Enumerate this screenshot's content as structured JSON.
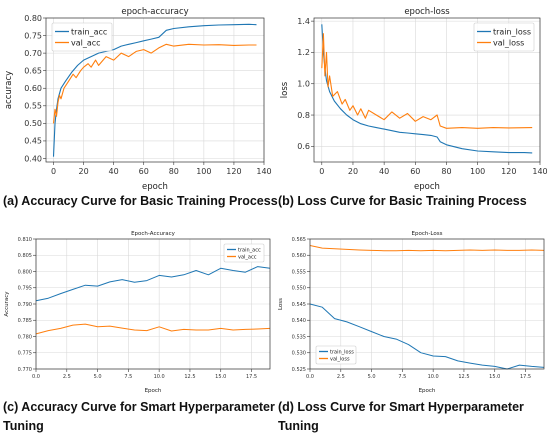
{
  "colors": {
    "train": "#1f77b4",
    "val": "#ff7f0e"
  },
  "captions": {
    "a": "(a) Accuracy Curve for Basic Training Process",
    "b": "(b) Loss Curve for Basic Training Process",
    "c_line1": "(c) Accuracy Curve for Smart Hyperparameter",
    "c_line2": "Tuning",
    "d_line1": "(d) Loss Curve for Smart Hyperparameter",
    "d_line2": "Tuning"
  },
  "chart_data": [
    {
      "id": "a",
      "type": "line",
      "title": "epoch-accuracy",
      "xlabel": "epoch",
      "ylabel": "accuracy",
      "xlim": [
        -5,
        140
      ],
      "ylim": [
        0.39,
        0.8
      ],
      "xticks": [
        0,
        20,
        40,
        60,
        80,
        100,
        120,
        140
      ],
      "xtick_labels": [
        "0",
        "20",
        "40",
        "60",
        "80",
        "100",
        "120",
        "140"
      ],
      "yticks": [
        0.4,
        0.45,
        0.5,
        0.55,
        0.6,
        0.65,
        0.7,
        0.75,
        0.8
      ],
      "ytick_labels": [
        "0.40",
        "0.45",
        "0.50",
        "0.55",
        "0.60",
        "0.65",
        "0.70",
        "0.75",
        "0.80"
      ],
      "grid": true,
      "legend": "top-left",
      "series": [
        {
          "name": "train_acc",
          "color": "#1f77b4",
          "x": [
            0,
            1,
            2,
            3,
            5,
            8,
            12,
            16,
            20,
            25,
            30,
            35,
            40,
            45,
            50,
            55,
            60,
            65,
            70,
            75,
            80,
            90,
            100,
            110,
            120,
            130,
            135
          ],
          "y": [
            0.405,
            0.5,
            0.54,
            0.57,
            0.6,
            0.62,
            0.645,
            0.665,
            0.68,
            0.69,
            0.7,
            0.705,
            0.71,
            0.72,
            0.725,
            0.73,
            0.735,
            0.74,
            0.745,
            0.765,
            0.77,
            0.775,
            0.778,
            0.78,
            0.781,
            0.782,
            0.781
          ]
        },
        {
          "name": "val_acc",
          "color": "#ff7f0e",
          "x": [
            0,
            1,
            2,
            3,
            4,
            5,
            7,
            10,
            13,
            15,
            18,
            20,
            23,
            25,
            28,
            30,
            35,
            40,
            45,
            50,
            55,
            60,
            65,
            70,
            75,
            80,
            90,
            100,
            110,
            120,
            130,
            135
          ],
          "y": [
            0.5,
            0.54,
            0.52,
            0.56,
            0.58,
            0.57,
            0.6,
            0.62,
            0.64,
            0.63,
            0.65,
            0.66,
            0.67,
            0.66,
            0.68,
            0.665,
            0.69,
            0.68,
            0.7,
            0.69,
            0.705,
            0.71,
            0.7,
            0.715,
            0.725,
            0.72,
            0.725,
            0.723,
            0.724,
            0.722,
            0.723,
            0.723
          ]
        }
      ]
    },
    {
      "id": "b",
      "type": "line",
      "title": "epoch-loss",
      "xlabel": "epoch",
      "ylabel": "loss",
      "xlim": [
        -5,
        140
      ],
      "ylim": [
        0.5,
        1.42
      ],
      "xticks": [
        0,
        20,
        40,
        60,
        80,
        100,
        120,
        140
      ],
      "xtick_labels": [
        "0",
        "20",
        "40",
        "60",
        "80",
        "100",
        "120",
        "140"
      ],
      "yticks": [
        0.6,
        0.8,
        1.0,
        1.2,
        1.4
      ],
      "ytick_labels": [
        "0.6",
        "0.8",
        "1.0",
        "1.2",
        "1.4"
      ],
      "grid": true,
      "legend": "top-right",
      "series": [
        {
          "name": "train_loss",
          "color": "#1f77b4",
          "x": [
            0,
            1,
            2,
            3,
            5,
            8,
            12,
            16,
            20,
            25,
            30,
            35,
            40,
            45,
            50,
            55,
            60,
            65,
            70,
            74,
            76,
            80,
            90,
            100,
            110,
            120,
            130,
            135
          ],
          "y": [
            1.38,
            1.2,
            1.1,
            1.02,
            0.95,
            0.89,
            0.84,
            0.8,
            0.77,
            0.745,
            0.73,
            0.72,
            0.71,
            0.7,
            0.69,
            0.685,
            0.68,
            0.675,
            0.67,
            0.66,
            0.63,
            0.61,
            0.585,
            0.57,
            0.565,
            0.56,
            0.56,
            0.558
          ]
        },
        {
          "name": "val_loss",
          "color": "#ff7f0e",
          "x": [
            0,
            1,
            2,
            3,
            4,
            5,
            7,
            10,
            13,
            15,
            18,
            20,
            23,
            25,
            28,
            30,
            35,
            40,
            45,
            50,
            55,
            60,
            65,
            70,
            74,
            76,
            80,
            90,
            100,
            110,
            120,
            130,
            135
          ],
          "y": [
            1.1,
            1.32,
            1.05,
            1.2,
            0.98,
            1.05,
            0.92,
            0.95,
            0.87,
            0.9,
            0.83,
            0.86,
            0.8,
            0.84,
            0.78,
            0.83,
            0.8,
            0.77,
            0.82,
            0.78,
            0.81,
            0.76,
            0.79,
            0.77,
            0.8,
            0.73,
            0.715,
            0.72,
            0.715,
            0.72,
            0.718,
            0.719,
            0.72
          ]
        }
      ]
    },
    {
      "id": "c",
      "type": "line",
      "title": "Epoch-Accuracy",
      "xlabel": "Epoch",
      "ylabel": "Accuracy",
      "xlim": [
        0,
        19
      ],
      "ylim": [
        0.77,
        0.81
      ],
      "xticks": [
        0,
        2.5,
        5,
        7.5,
        10,
        12.5,
        15,
        17.5
      ],
      "xtick_labels": [
        "0.0",
        "2.5",
        "5.0",
        "7.5",
        "10.0",
        "12.5",
        "15.0",
        "17.5"
      ],
      "yticks": [
        0.77,
        0.775,
        0.78,
        0.785,
        0.79,
        0.795,
        0.8,
        0.805,
        0.81
      ],
      "ytick_labels": [
        "0.770",
        "0.775",
        "0.780",
        "0.785",
        "0.790",
        "0.795",
        "0.800",
        "0.805",
        "0.810"
      ],
      "grid": true,
      "legend": "top-right",
      "series": [
        {
          "name": "train_acc",
          "color": "#1f77b4",
          "x": [
            0,
            1,
            2,
            3,
            4,
            5,
            6,
            7,
            8,
            9,
            10,
            11,
            12,
            13,
            14,
            15,
            16,
            17,
            18,
            19
          ],
          "y": [
            0.791,
            0.7918,
            0.7932,
            0.7945,
            0.7958,
            0.7955,
            0.7968,
            0.7975,
            0.7967,
            0.7972,
            0.7988,
            0.7983,
            0.799,
            0.8003,
            0.799,
            0.801,
            0.8003,
            0.7998,
            0.8015,
            0.801
          ]
        },
        {
          "name": "val_acc",
          "color": "#ff7f0e",
          "x": [
            0,
            1,
            2,
            3,
            4,
            5,
            6,
            7,
            8,
            9,
            10,
            11,
            12,
            13,
            14,
            15,
            16,
            17,
            18,
            19
          ],
          "y": [
            0.7808,
            0.7818,
            0.7825,
            0.7835,
            0.7838,
            0.783,
            0.7832,
            0.7826,
            0.782,
            0.7818,
            0.783,
            0.7817,
            0.7822,
            0.782,
            0.782,
            0.7825,
            0.782,
            0.7822,
            0.7823,
            0.7825
          ]
        }
      ]
    },
    {
      "id": "d",
      "type": "line",
      "title": "Epoch-Loss",
      "xlabel": "Epoch",
      "ylabel": "Loss",
      "xlim": [
        0,
        19
      ],
      "ylim": [
        0.525,
        0.565
      ],
      "xticks": [
        0,
        2.5,
        5,
        7.5,
        10,
        12.5,
        15,
        17.5
      ],
      "xtick_labels": [
        "0.0",
        "2.5",
        "5.0",
        "7.5",
        "10.0",
        "12.5",
        "15.0",
        "17.5"
      ],
      "yticks": [
        0.525,
        0.53,
        0.535,
        0.54,
        0.545,
        0.55,
        0.555,
        0.56,
        0.565
      ],
      "ytick_labels": [
        "0.525",
        "0.530",
        "0.535",
        "0.540",
        "0.545",
        "0.550",
        "0.555",
        "0.560",
        "0.565"
      ],
      "grid": true,
      "legend": "bottom-left",
      "series": [
        {
          "name": "train_loss",
          "color": "#1f77b4",
          "x": [
            0,
            1,
            2,
            3,
            4,
            5,
            6,
            7,
            8,
            9,
            10,
            11,
            12,
            13,
            14,
            15,
            16,
            17,
            18,
            19
          ],
          "y": [
            0.545,
            0.544,
            0.5405,
            0.5395,
            0.538,
            0.5365,
            0.535,
            0.5342,
            0.5325,
            0.53,
            0.529,
            0.5288,
            0.5275,
            0.5268,
            0.5262,
            0.5258,
            0.525,
            0.5262,
            0.5258,
            0.5255
          ]
        },
        {
          "name": "val_loss",
          "color": "#ff7f0e",
          "x": [
            0,
            1,
            2,
            3,
            4,
            5,
            6,
            7,
            8,
            9,
            10,
            11,
            12,
            13,
            14,
            15,
            16,
            17,
            18,
            19
          ],
          "y": [
            0.563,
            0.5622,
            0.562,
            0.5618,
            0.5616,
            0.5615,
            0.5614,
            0.5614,
            0.5615,
            0.5614,
            0.5615,
            0.5614,
            0.5615,
            0.5616,
            0.5615,
            0.5616,
            0.5615,
            0.5615,
            0.5616,
            0.5615
          ]
        }
      ]
    }
  ]
}
